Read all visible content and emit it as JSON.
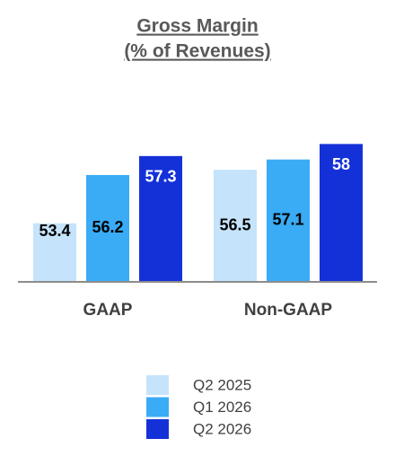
{
  "chart_data": {
    "type": "bar",
    "title": "Gross Margin",
    "subtitle": "(% of Revenues)",
    "categories": [
      "GAAP",
      "Non-GAAP"
    ],
    "series": [
      {
        "name": "Q2 2025",
        "color": "#c5e3fa",
        "values": [
          53.4,
          56.5
        ]
      },
      {
        "name": "Q1 2026",
        "color": "#3aabf5",
        "values": [
          56.2,
          57.1
        ]
      },
      {
        "name": "Q2 2026",
        "color": "#1431d8",
        "values": [
          57.3,
          58.0
        ]
      }
    ],
    "ylim": [
      50,
      60
    ]
  }
}
